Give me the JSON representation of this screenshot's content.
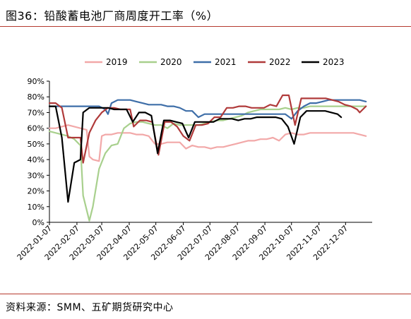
{
  "header": {
    "title": "图36：铅酸蓄电池厂商周度开工率（%）"
  },
  "footer": {
    "source": "资料来源：SMM、五矿期货研究中心"
  },
  "chart_data": {
    "type": "line",
    "title": "",
    "xlabel": "",
    "ylabel": "",
    "ylim": [
      0,
      90
    ],
    "y_ticks": [
      "0%",
      "10%",
      "20%",
      "30%",
      "40%",
      "50%",
      "60%",
      "70%",
      "80%",
      "90%"
    ],
    "x_ticks": [
      "2022-01-07",
      "2022-02-07",
      "2022-03-07",
      "2022-04-07",
      "2022-05-07",
      "2022-06-07",
      "2022-07-07",
      "2022-08-07",
      "2022-09-07",
      "2022-10-07",
      "2022-11-07",
      "2022-12-07"
    ],
    "legend_position": "top",
    "grid": false,
    "series": [
      {
        "name": "2019",
        "color": "#f2a8a8",
        "points": [
          [
            "2022-01-07",
            60
          ],
          [
            "2022-01-14",
            60
          ],
          [
            "2022-01-21",
            61
          ],
          [
            "2022-01-28",
            62
          ],
          [
            "2022-02-04",
            61
          ],
          [
            "2022-02-11",
            60
          ],
          [
            "2022-02-18",
            59
          ],
          [
            "2022-02-21",
            42
          ],
          [
            "2022-02-25",
            40
          ],
          [
            "2022-03-04",
            39
          ],
          [
            "2022-03-07",
            55
          ],
          [
            "2022-03-11",
            56
          ],
          [
            "2022-03-18",
            56
          ],
          [
            "2022-03-25",
            57
          ],
          [
            "2022-04-01",
            57
          ],
          [
            "2022-04-08",
            57
          ],
          [
            "2022-04-15",
            56
          ],
          [
            "2022-04-22",
            56
          ],
          [
            "2022-04-29",
            55
          ],
          [
            "2022-05-06",
            50
          ],
          [
            "2022-05-13",
            50
          ],
          [
            "2022-05-20",
            51
          ],
          [
            "2022-05-27",
            51
          ],
          [
            "2022-06-03",
            51
          ],
          [
            "2022-06-10",
            47
          ],
          [
            "2022-06-17",
            49
          ],
          [
            "2022-06-24",
            48
          ],
          [
            "2022-07-01",
            48
          ],
          [
            "2022-07-08",
            47
          ],
          [
            "2022-07-15",
            48
          ],
          [
            "2022-07-22",
            48
          ],
          [
            "2022-07-29",
            49
          ],
          [
            "2022-08-05",
            50
          ],
          [
            "2022-08-12",
            51
          ],
          [
            "2022-08-19",
            52
          ],
          [
            "2022-08-26",
            52
          ],
          [
            "2022-09-02",
            53
          ],
          [
            "2022-09-09",
            53
          ],
          [
            "2022-09-16",
            54
          ],
          [
            "2022-09-23",
            52
          ],
          [
            "2022-09-30",
            56
          ],
          [
            "2022-10-07",
            57
          ],
          [
            "2022-10-14",
            56
          ],
          [
            "2022-10-21",
            56
          ],
          [
            "2022-10-28",
            57
          ],
          [
            "2022-11-04",
            57
          ],
          [
            "2022-11-11",
            57
          ],
          [
            "2022-11-18",
            57
          ],
          [
            "2022-11-25",
            57
          ],
          [
            "2022-12-02",
            57
          ],
          [
            "2022-12-09",
            57
          ],
          [
            "2022-12-16",
            57
          ],
          [
            "2022-12-23",
            56
          ],
          [
            "2022-12-30",
            55
          ]
        ]
      },
      {
        "name": "2020",
        "color": "#a8d08d",
        "points": [
          [
            "2022-01-07",
            58
          ],
          [
            "2022-01-14",
            57
          ],
          [
            "2022-01-21",
            56
          ],
          [
            "2022-01-28",
            55
          ],
          [
            "2022-02-04",
            53
          ],
          [
            "2022-02-11",
            49
          ],
          [
            "2022-02-14",
            17
          ],
          [
            "2022-02-21",
            1
          ],
          [
            "2022-02-25",
            10
          ],
          [
            "2022-03-04",
            34
          ],
          [
            "2022-03-11",
            44
          ],
          [
            "2022-03-18",
            49
          ],
          [
            "2022-03-25",
            50
          ],
          [
            "2022-04-01",
            60
          ],
          [
            "2022-04-08",
            63
          ],
          [
            "2022-04-15",
            64
          ],
          [
            "2022-04-22",
            64
          ],
          [
            "2022-04-29",
            63
          ],
          [
            "2022-05-06",
            62
          ],
          [
            "2022-05-13",
            62
          ],
          [
            "2022-05-20",
            60
          ],
          [
            "2022-05-27",
            63
          ],
          [
            "2022-06-03",
            62
          ],
          [
            "2022-06-10",
            62
          ],
          [
            "2022-06-17",
            62
          ],
          [
            "2022-06-24",
            62
          ],
          [
            "2022-07-01",
            63
          ],
          [
            "2022-07-08",
            64
          ],
          [
            "2022-07-15",
            65
          ],
          [
            "2022-07-22",
            65
          ],
          [
            "2022-07-29",
            66
          ],
          [
            "2022-08-05",
            67
          ],
          [
            "2022-08-12",
            68
          ],
          [
            "2022-08-19",
            70
          ],
          [
            "2022-08-26",
            71
          ],
          [
            "2022-09-02",
            72
          ],
          [
            "2022-09-09",
            72
          ],
          [
            "2022-09-16",
            72
          ],
          [
            "2022-09-23",
            72
          ],
          [
            "2022-09-30",
            73
          ],
          [
            "2022-10-07",
            72
          ],
          [
            "2022-10-14",
            73
          ],
          [
            "2022-10-21",
            73
          ],
          [
            "2022-10-28",
            74
          ],
          [
            "2022-11-04",
            74
          ],
          [
            "2022-11-11",
            74
          ],
          [
            "2022-11-18",
            74
          ],
          [
            "2022-11-25",
            74
          ],
          [
            "2022-12-02",
            74
          ],
          [
            "2022-12-09",
            74
          ],
          [
            "2022-12-16",
            74
          ],
          [
            "2022-12-23",
            74
          ],
          [
            "2022-12-30",
            74
          ]
        ]
      },
      {
        "name": "2021",
        "color": "#3e6ea8",
        "points": [
          [
            "2022-01-07",
            74
          ],
          [
            "2022-01-14",
            74
          ],
          [
            "2022-01-21",
            74
          ],
          [
            "2022-01-28",
            74
          ],
          [
            "2022-02-04",
            74
          ],
          [
            "2022-02-11",
            74
          ],
          [
            "2022-02-18",
            74
          ],
          [
            "2022-02-25",
            74
          ],
          [
            "2022-03-04",
            74
          ],
          [
            "2022-03-11",
            72
          ],
          [
            "2022-03-14",
            69
          ],
          [
            "2022-03-18",
            76
          ],
          [
            "2022-03-25",
            78
          ],
          [
            "2022-04-01",
            78
          ],
          [
            "2022-04-08",
            78
          ],
          [
            "2022-04-15",
            77
          ],
          [
            "2022-04-22",
            76
          ],
          [
            "2022-04-29",
            75
          ],
          [
            "2022-05-06",
            75
          ],
          [
            "2022-05-13",
            75
          ],
          [
            "2022-05-20",
            74
          ],
          [
            "2022-05-27",
            74
          ],
          [
            "2022-06-03",
            73
          ],
          [
            "2022-06-10",
            71
          ],
          [
            "2022-06-17",
            71
          ],
          [
            "2022-06-24",
            67
          ],
          [
            "2022-07-01",
            69
          ],
          [
            "2022-07-08",
            69
          ],
          [
            "2022-07-15",
            69
          ],
          [
            "2022-07-22",
            69
          ],
          [
            "2022-07-29",
            69
          ],
          [
            "2022-08-05",
            69
          ],
          [
            "2022-08-12",
            69
          ],
          [
            "2022-08-19",
            69
          ],
          [
            "2022-08-26",
            69
          ],
          [
            "2022-09-02",
            69
          ],
          [
            "2022-09-09",
            69
          ],
          [
            "2022-09-16",
            69
          ],
          [
            "2022-09-23",
            69
          ],
          [
            "2022-09-30",
            69
          ],
          [
            "2022-10-07",
            66
          ],
          [
            "2022-10-14",
            71
          ],
          [
            "2022-10-21",
            74
          ],
          [
            "2022-10-28",
            76
          ],
          [
            "2022-11-04",
            76
          ],
          [
            "2022-11-11",
            77
          ],
          [
            "2022-11-18",
            78
          ],
          [
            "2022-11-25",
            78
          ],
          [
            "2022-12-02",
            78
          ],
          [
            "2022-12-09",
            78
          ],
          [
            "2022-12-16",
            78
          ],
          [
            "2022-12-23",
            78
          ],
          [
            "2022-12-30",
            77
          ]
        ]
      },
      {
        "name": "2022",
        "color": "#b03a3a",
        "points": [
          [
            "2022-01-07",
            76
          ],
          [
            "2022-01-14",
            76
          ],
          [
            "2022-01-21",
            73
          ],
          [
            "2022-01-28",
            54
          ],
          [
            "2022-02-04",
            54
          ],
          [
            "2022-02-11",
            54
          ],
          [
            "2022-02-14",
            38
          ],
          [
            "2022-02-21",
            57
          ],
          [
            "2022-02-28",
            65
          ],
          [
            "2022-03-07",
            70
          ],
          [
            "2022-03-14",
            73
          ],
          [
            "2022-03-21",
            73
          ],
          [
            "2022-03-28",
            72
          ],
          [
            "2022-04-04",
            72
          ],
          [
            "2022-04-08",
            72
          ],
          [
            "2022-04-12",
            61
          ],
          [
            "2022-04-19",
            65
          ],
          [
            "2022-04-26",
            65
          ],
          [
            "2022-05-03",
            64
          ],
          [
            "2022-05-10",
            43
          ],
          [
            "2022-05-17",
            64
          ],
          [
            "2022-05-24",
            64
          ],
          [
            "2022-05-31",
            61
          ],
          [
            "2022-06-07",
            55
          ],
          [
            "2022-06-14",
            52
          ],
          [
            "2022-06-21",
            62
          ],
          [
            "2022-06-28",
            62
          ],
          [
            "2022-07-05",
            63
          ],
          [
            "2022-07-12",
            67
          ],
          [
            "2022-07-19",
            67
          ],
          [
            "2022-07-26",
            73
          ],
          [
            "2022-08-02",
            73
          ],
          [
            "2022-08-09",
            74
          ],
          [
            "2022-08-16",
            74
          ],
          [
            "2022-08-23",
            73
          ],
          [
            "2022-08-30",
            73
          ],
          [
            "2022-09-06",
            73
          ],
          [
            "2022-09-13",
            75
          ],
          [
            "2022-09-20",
            74
          ],
          [
            "2022-09-27",
            81
          ],
          [
            "2022-10-04",
            81
          ],
          [
            "2022-10-11",
            62
          ],
          [
            "2022-10-18",
            79
          ],
          [
            "2022-10-25",
            79
          ],
          [
            "2022-11-01",
            79
          ],
          [
            "2022-11-08",
            79
          ],
          [
            "2022-11-15",
            79
          ],
          [
            "2022-11-22",
            78
          ],
          [
            "2022-11-29",
            77
          ],
          [
            "2022-12-06",
            75
          ],
          [
            "2022-12-13",
            74
          ],
          [
            "2022-12-20",
            72
          ],
          [
            "2022-12-23",
            70
          ],
          [
            "2022-12-30",
            74
          ]
        ]
      },
      {
        "name": "2023",
        "color": "#000000",
        "points": [
          [
            "2022-01-07",
            74
          ],
          [
            "2022-01-14",
            74
          ],
          [
            "2022-01-21",
            54
          ],
          [
            "2022-01-28",
            13
          ],
          [
            "2022-02-04",
            38
          ],
          [
            "2022-02-11",
            40
          ],
          [
            "2022-02-14",
            70
          ],
          [
            "2022-02-21",
            73
          ],
          [
            "2022-02-28",
            73
          ],
          [
            "2022-03-07",
            73
          ],
          [
            "2022-03-14",
            73
          ],
          [
            "2022-03-21",
            72
          ],
          [
            "2022-03-28",
            72
          ],
          [
            "2022-04-04",
            72
          ],
          [
            "2022-04-11",
            64
          ],
          [
            "2022-04-18",
            70
          ],
          [
            "2022-04-25",
            70
          ],
          [
            "2022-05-02",
            68
          ],
          [
            "2022-05-09",
            44
          ],
          [
            "2022-05-16",
            65
          ],
          [
            "2022-05-23",
            65
          ],
          [
            "2022-05-30",
            64
          ],
          [
            "2022-06-06",
            63
          ],
          [
            "2022-06-13",
            54
          ],
          [
            "2022-06-20",
            64
          ],
          [
            "2022-06-27",
            64
          ],
          [
            "2022-07-04",
            64
          ],
          [
            "2022-07-11",
            64
          ],
          [
            "2022-07-18",
            66
          ],
          [
            "2022-07-25",
            66
          ],
          [
            "2022-08-01",
            66
          ],
          [
            "2022-08-08",
            65
          ],
          [
            "2022-08-15",
            66
          ],
          [
            "2022-08-22",
            66
          ],
          [
            "2022-08-29",
            67
          ],
          [
            "2022-09-05",
            67
          ],
          [
            "2022-09-12",
            67
          ],
          [
            "2022-09-19",
            67
          ],
          [
            "2022-09-26",
            66
          ],
          [
            "2022-10-03",
            61
          ],
          [
            "2022-10-10",
            50
          ],
          [
            "2022-10-17",
            67
          ],
          [
            "2022-10-24",
            71
          ],
          [
            "2022-10-31",
            71
          ],
          [
            "2022-11-07",
            71
          ],
          [
            "2022-11-14",
            71
          ],
          [
            "2022-11-21",
            70
          ],
          [
            "2022-11-28",
            69
          ],
          [
            "2022-12-02",
            67
          ]
        ]
      }
    ]
  }
}
